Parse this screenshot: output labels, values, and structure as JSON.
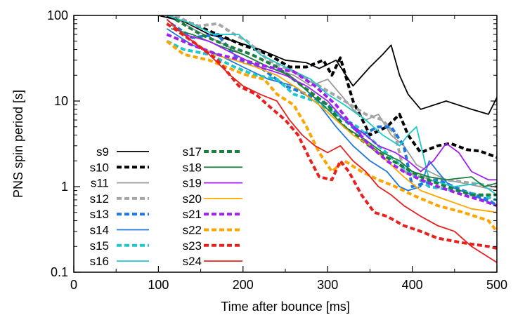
{
  "chart_data": {
    "type": "line",
    "xlabel": "Time after bounce [ms]",
    "ylabel": "PNS spin period [s]",
    "xlim": [
      0,
      500
    ],
    "ylim": [
      0.1,
      100
    ],
    "yscale": "log",
    "x_ticks": [
      "0",
      "100",
      "200",
      "300",
      "400",
      "500"
    ],
    "y_ticks": [
      "0.1",
      "1",
      "10",
      "100"
    ],
    "grid": false,
    "legend_position": "bottom-left",
    "series": [
      {
        "name": "s9",
        "color": "#000000",
        "dash": false,
        "points": [
          [
            100,
            100
          ],
          [
            130,
            85
          ],
          [
            160,
            60
          ],
          [
            190,
            50
          ],
          [
            220,
            40
          ],
          [
            250,
            30
          ],
          [
            275,
            28
          ],
          [
            290,
            24
          ],
          [
            310,
            30
          ],
          [
            330,
            15
          ],
          [
            350,
            25
          ],
          [
            365,
            35
          ],
          [
            375,
            45
          ],
          [
            385,
            20
          ],
          [
            395,
            12
          ],
          [
            410,
            8
          ],
          [
            440,
            10
          ],
          [
            470,
            8
          ],
          [
            490,
            7
          ],
          [
            500,
            11
          ]
        ]
      },
      {
        "name": "s10",
        "color": "#000000",
        "dash": true,
        "points": [
          [
            110,
            100
          ],
          [
            140,
            80
          ],
          [
            170,
            60
          ],
          [
            200,
            45
          ],
          [
            230,
            35
          ],
          [
            255,
            25
          ],
          [
            275,
            25
          ],
          [
            295,
            30
          ],
          [
            305,
            20
          ],
          [
            315,
            32
          ],
          [
            330,
            10
          ],
          [
            350,
            4
          ],
          [
            370,
            5
          ],
          [
            385,
            7
          ],
          [
            395,
            4
          ],
          [
            410,
            2.5
          ],
          [
            430,
            3
          ],
          [
            445,
            3.2
          ],
          [
            465,
            2.7
          ],
          [
            480,
            2.6
          ],
          [
            500,
            2.2
          ]
        ]
      },
      {
        "name": "s11",
        "color": "#999999",
        "dash": false,
        "points": [
          [
            115,
            100
          ],
          [
            140,
            70
          ],
          [
            170,
            50
          ],
          [
            200,
            35
          ],
          [
            230,
            25
          ],
          [
            260,
            20
          ],
          [
            280,
            15
          ],
          [
            300,
            18
          ],
          [
            315,
            12
          ],
          [
            330,
            8
          ],
          [
            345,
            6
          ],
          [
            360,
            7
          ],
          [
            375,
            4
          ],
          [
            390,
            3
          ],
          [
            405,
            1.8
          ],
          [
            420,
            1.5
          ],
          [
            440,
            1.2
          ],
          [
            460,
            1.1
          ],
          [
            480,
            1.0
          ],
          [
            500,
            0.9
          ]
        ]
      },
      {
        "name": "s12",
        "color": "#a6a6a6",
        "dash": true,
        "points": [
          [
            120,
            100
          ],
          [
            145,
            75
          ],
          [
            170,
            80
          ],
          [
            190,
            60
          ],
          [
            205,
            50
          ],
          [
            230,
            30
          ],
          [
            260,
            22
          ],
          [
            290,
            15
          ],
          [
            320,
            10
          ],
          [
            345,
            7
          ],
          [
            365,
            6
          ],
          [
            380,
            4
          ],
          [
            390,
            1.5
          ],
          [
            410,
            1.3
          ],
          [
            440,
            1.2
          ],
          [
            470,
            1.1
          ],
          [
            500,
            1.0
          ]
        ]
      },
      {
        "name": "s13",
        "color": "#1f78e0",
        "dash": true,
        "points": [
          [
            115,
            80
          ],
          [
            140,
            55
          ],
          [
            170,
            60
          ],
          [
            195,
            30
          ],
          [
            220,
            25
          ],
          [
            250,
            15
          ],
          [
            275,
            12
          ],
          [
            300,
            9
          ],
          [
            320,
            6
          ],
          [
            340,
            4
          ],
          [
            360,
            5
          ],
          [
            375,
            5
          ],
          [
            390,
            3
          ],
          [
            400,
            1.0
          ],
          [
            430,
            1.2
          ],
          [
            460,
            0.9
          ],
          [
            490,
            0.7
          ],
          [
            500,
            0.6
          ]
        ]
      },
      {
        "name": "s14",
        "color": "#1f78e0",
        "dash": false,
        "points": [
          [
            110,
            70
          ],
          [
            140,
            45
          ],
          [
            170,
            35
          ],
          [
            200,
            25
          ],
          [
            230,
            18
          ],
          [
            260,
            15
          ],
          [
            290,
            9
          ],
          [
            310,
            5
          ],
          [
            330,
            3
          ],
          [
            350,
            2
          ],
          [
            370,
            1.5
          ],
          [
            385,
            1.0
          ],
          [
            395,
            0.9
          ],
          [
            410,
            1.0
          ],
          [
            420,
            2.0
          ],
          [
            430,
            1.5
          ],
          [
            445,
            1.0
          ],
          [
            470,
            0.8
          ],
          [
            500,
            0.6
          ]
        ]
      },
      {
        "name": "s15",
        "color": "#1ec8c8",
        "dash": true,
        "points": [
          [
            110,
            50
          ],
          [
            130,
            40
          ],
          [
            160,
            35
          ],
          [
            190,
            25
          ],
          [
            215,
            20
          ],
          [
            240,
            18
          ],
          [
            260,
            12
          ],
          [
            285,
            10
          ],
          [
            310,
            7
          ],
          [
            335,
            5
          ],
          [
            360,
            3
          ],
          [
            380,
            2
          ],
          [
            395,
            1.5
          ],
          [
            420,
            1.0
          ],
          [
            450,
            0.9
          ],
          [
            480,
            0.8
          ],
          [
            500,
            0.7
          ]
        ]
      },
      {
        "name": "s16",
        "color": "#1ec8c8",
        "dash": false,
        "points": [
          [
            110,
            100
          ],
          [
            140,
            80
          ],
          [
            165,
            60
          ],
          [
            195,
            60
          ],
          [
            220,
            35
          ],
          [
            250,
            25
          ],
          [
            280,
            18
          ],
          [
            300,
            12
          ],
          [
            320,
            9
          ],
          [
            345,
            6
          ],
          [
            365,
            4
          ],
          [
            385,
            3
          ],
          [
            395,
            4
          ],
          [
            405,
            5
          ],
          [
            420,
            1.2
          ],
          [
            450,
            1.0
          ],
          [
            480,
            1.1
          ],
          [
            500,
            0.8
          ]
        ]
      },
      {
        "name": "s17",
        "color": "#1a8040",
        "dash": true,
        "points": [
          [
            120,
            90
          ],
          [
            150,
            60
          ],
          [
            180,
            45
          ],
          [
            210,
            35
          ],
          [
            240,
            25
          ],
          [
            270,
            15
          ],
          [
            300,
            9
          ],
          [
            320,
            5
          ],
          [
            340,
            3.5
          ],
          [
            360,
            2.5
          ],
          [
            385,
            1.8
          ],
          [
            410,
            1.3
          ],
          [
            440,
            1.0
          ],
          [
            470,
            0.8
          ],
          [
            500,
            0.8
          ]
        ]
      },
      {
        "name": "s18",
        "color": "#1a8040",
        "dash": false,
        "points": [
          [
            115,
            70
          ],
          [
            140,
            60
          ],
          [
            170,
            45
          ],
          [
            200,
            35
          ],
          [
            230,
            25
          ],
          [
            255,
            20
          ],
          [
            280,
            12
          ],
          [
            300,
            8
          ],
          [
            320,
            5
          ],
          [
            345,
            3.5
          ],
          [
            365,
            2.5
          ],
          [
            385,
            2.0
          ],
          [
            400,
            1.5
          ],
          [
            420,
            1.3
          ],
          [
            440,
            1.2
          ],
          [
            470,
            1.3
          ],
          [
            485,
            1.0
          ],
          [
            500,
            1.1
          ]
        ]
      },
      {
        "name": "s19",
        "color": "#a020f0",
        "dash": false,
        "points": [
          [
            110,
            90
          ],
          [
            130,
            60
          ],
          [
            160,
            50
          ],
          [
            190,
            35
          ],
          [
            220,
            25
          ],
          [
            250,
            20
          ],
          [
            275,
            15
          ],
          [
            300,
            10
          ],
          [
            320,
            6
          ],
          [
            345,
            4
          ],
          [
            360,
            3
          ],
          [
            380,
            2.5
          ],
          [
            395,
            2.0
          ],
          [
            410,
            1.5
          ],
          [
            425,
            2.0
          ],
          [
            440,
            3.2
          ],
          [
            455,
            2.5
          ],
          [
            470,
            1.5
          ],
          [
            490,
            1.2
          ],
          [
            500,
            1.2
          ]
        ]
      },
      {
        "name": "s20",
        "color": "#ffa500",
        "dash": false,
        "points": [
          [
            115,
            80
          ],
          [
            140,
            50
          ],
          [
            165,
            35
          ],
          [
            190,
            30
          ],
          [
            215,
            25
          ],
          [
            240,
            20
          ],
          [
            265,
            14
          ],
          [
            290,
            9
          ],
          [
            310,
            6
          ],
          [
            330,
            4
          ],
          [
            350,
            3
          ],
          [
            370,
            2.0
          ],
          [
            390,
            1.3
          ],
          [
            410,
            0.9
          ],
          [
            440,
            0.7
          ],
          [
            470,
            0.55
          ],
          [
            500,
            0.5
          ]
        ]
      },
      {
        "name": "s21",
        "color": "#a020f0",
        "dash": true,
        "points": [
          [
            110,
            60
          ],
          [
            140,
            45
          ],
          [
            170,
            35
          ],
          [
            200,
            30
          ],
          [
            230,
            25
          ],
          [
            260,
            22
          ],
          [
            285,
            15
          ],
          [
            310,
            9
          ],
          [
            330,
            5
          ],
          [
            350,
            3
          ],
          [
            370,
            2.0
          ],
          [
            390,
            1.5
          ],
          [
            410,
            1.2
          ],
          [
            430,
            1.0
          ],
          [
            460,
            0.8
          ],
          [
            480,
            0.7
          ],
          [
            500,
            0.6
          ]
        ]
      },
      {
        "name": "s22",
        "color": "#ffa500",
        "dash": true,
        "points": [
          [
            110,
            50
          ],
          [
            130,
            35
          ],
          [
            160,
            30
          ],
          [
            180,
            25
          ],
          [
            205,
            20
          ],
          [
            225,
            18
          ],
          [
            240,
            12
          ],
          [
            260,
            9
          ],
          [
            275,
            5
          ],
          [
            290,
            2.5
          ],
          [
            305,
            1.5
          ],
          [
            320,
            2.0
          ],
          [
            340,
            1.5
          ],
          [
            360,
            1.2
          ],
          [
            380,
            1.0
          ],
          [
            400,
            0.8
          ],
          [
            430,
            0.6
          ],
          [
            460,
            0.5
          ],
          [
            490,
            0.4
          ],
          [
            500,
            0.3
          ]
        ]
      },
      {
        "name": "s23",
        "color": "#e8201e",
        "dash": true,
        "points": [
          [
            110,
            80
          ],
          [
            140,
            50
          ],
          [
            170,
            30
          ],
          [
            195,
            15
          ],
          [
            215,
            12
          ],
          [
            235,
            8
          ],
          [
            250,
            6
          ],
          [
            265,
            4
          ],
          [
            280,
            2.0
          ],
          [
            290,
            1.3
          ],
          [
            305,
            1.2
          ],
          [
            315,
            2.0
          ],
          [
            325,
            1.5
          ],
          [
            340,
            0.8
          ],
          [
            355,
            0.5
          ],
          [
            370,
            0.45
          ],
          [
            390,
            0.35
          ],
          [
            410,
            0.3
          ],
          [
            430,
            0.25
          ],
          [
            460,
            0.22
          ],
          [
            490,
            0.2
          ],
          [
            500,
            0.19
          ]
        ]
      },
      {
        "name": "s24",
        "color": "#e8201e",
        "dash": false,
        "points": [
          [
            110,
            90
          ],
          [
            130,
            60
          ],
          [
            160,
            35
          ],
          [
            185,
            20
          ],
          [
            200,
            15
          ],
          [
            220,
            12
          ],
          [
            240,
            10
          ],
          [
            255,
            6
          ],
          [
            270,
            4
          ],
          [
            285,
            3
          ],
          [
            300,
            2.5
          ],
          [
            315,
            3
          ],
          [
            330,
            2
          ],
          [
            345,
            1.5
          ],
          [
            360,
            1.0
          ],
          [
            375,
            0.8
          ],
          [
            390,
            0.6
          ],
          [
            410,
            0.45
          ],
          [
            430,
            0.35
          ],
          [
            450,
            0.3
          ],
          [
            470,
            0.2
          ],
          [
            490,
            0.15
          ],
          [
            500,
            0.13
          ]
        ]
      }
    ]
  }
}
